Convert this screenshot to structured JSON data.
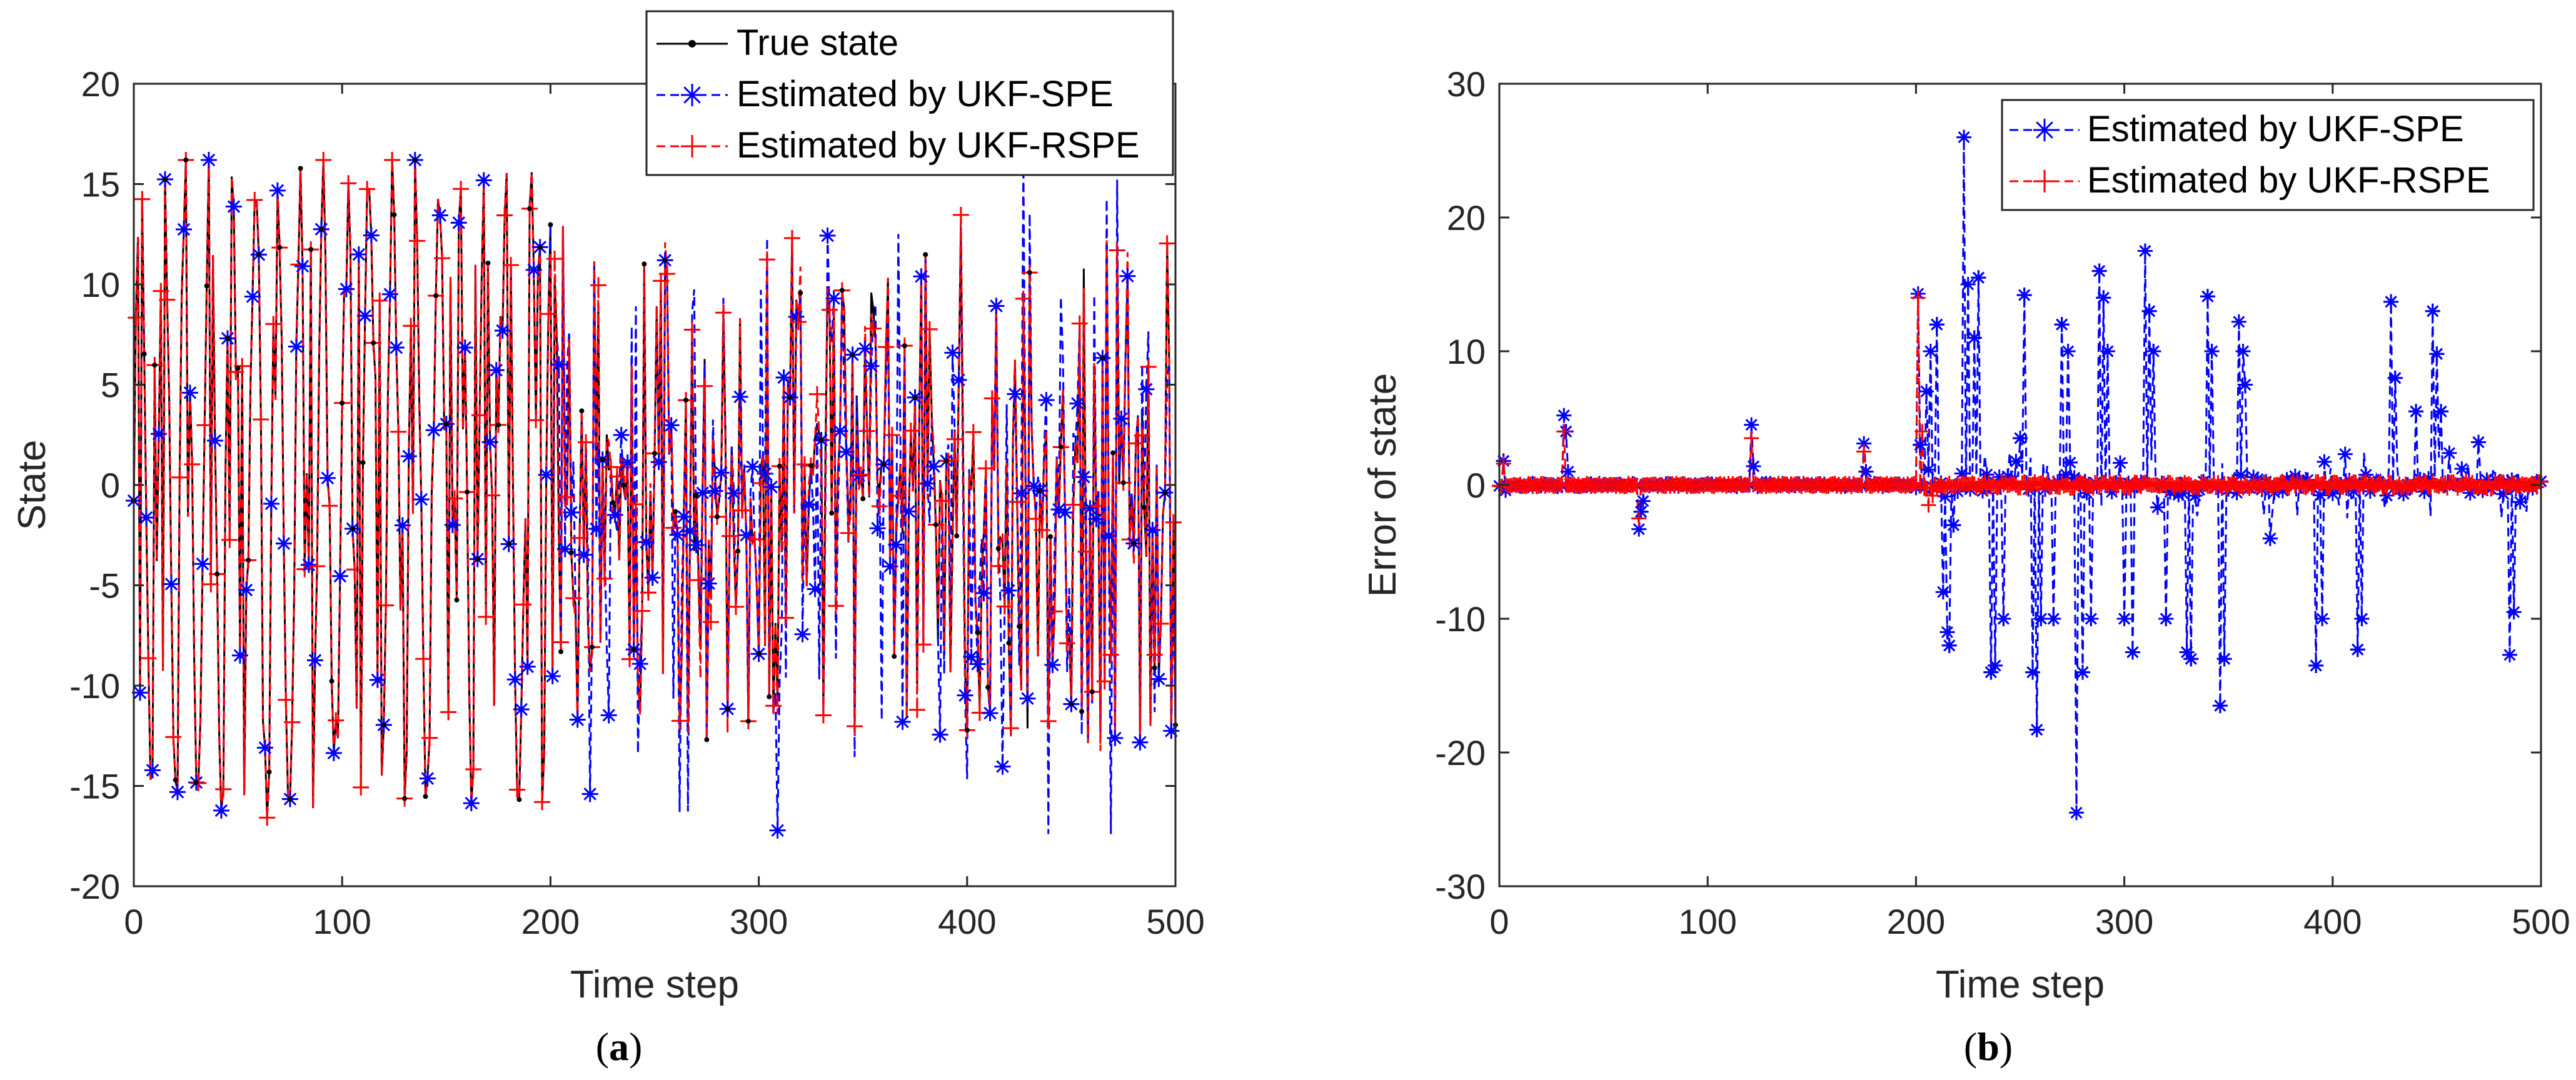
{
  "colors": {
    "true": "#000000",
    "spe": "#0000ff",
    "rspe": "#ff0000",
    "axis": "#262626"
  },
  "chart_data": [
    {
      "type": "line",
      "panel": "a",
      "caption_open": "(",
      "caption_letter": "a",
      "caption_close": ")",
      "xlabel": "Time step",
      "ylabel": "State",
      "xlim": [
        0,
        500
      ],
      "ylim": [
        -20,
        20
      ],
      "xticks": [
        0,
        100,
        200,
        300,
        400,
        500
      ],
      "yticks": [
        20,
        15,
        10,
        5,
        0,
        -5,
        -10,
        -15,
        -20
      ],
      "legend_position": "top-right",
      "series": [
        {
          "name": "True state",
          "marker": "dot"
        },
        {
          "name": "Estimated by UKF-SPE",
          "marker": "asterisk"
        },
        {
          "name": "Estimated by UKF-RSPE",
          "marker": "plus"
        }
      ],
      "description": "Signal oscillates between about -17 and 16 over 500 steps; estimates track closely."
    },
    {
      "type": "line",
      "panel": "b",
      "caption_open": "(",
      "caption_letter": "b",
      "caption_close": ")",
      "xlabel": "Time step",
      "ylabel": "Error of state",
      "xlim": [
        0,
        500
      ],
      "ylim": [
        -30,
        30
      ],
      "xticks": [
        0,
        100,
        200,
        300,
        400,
        500
      ],
      "yticks": [
        30,
        20,
        10,
        0,
        -10,
        -20,
        -30
      ],
      "legend_position": "top-right",
      "series": [
        {
          "name": "Estimated by UKF-SPE",
          "marker": "asterisk"
        },
        {
          "name": "Estimated by UKF-RSPE",
          "marker": "plus"
        }
      ],
      "spe_spikes": [
        [
          2,
          1.8
        ],
        [
          3,
          -0.4
        ],
        [
          31,
          5.2
        ],
        [
          32,
          4.0
        ],
        [
          33,
          1.0
        ],
        [
          67,
          -3.3
        ],
        [
          68,
          -2.0
        ],
        [
          69,
          -1.2
        ],
        [
          121,
          4.5
        ],
        [
          122,
          1.4
        ],
        [
          175,
          3.1
        ],
        [
          176,
          1.0
        ],
        [
          201,
          14.3
        ],
        [
          202,
          3.0
        ],
        [
          205,
          7.0
        ],
        [
          207,
          10.0
        ],
        [
          210,
          12.0
        ],
        [
          213,
          -8.0
        ],
        [
          215,
          -11.0
        ],
        [
          216,
          -12.0
        ],
        [
          218,
          -3.0
        ],
        [
          223,
          26.0
        ],
        [
          225,
          15.0
        ],
        [
          228,
          11.0
        ],
        [
          230,
          15.5
        ],
        [
          236,
          -14.0
        ],
        [
          238,
          -13.5
        ],
        [
          242,
          -10.0
        ],
        [
          250,
          3.5
        ],
        [
          252,
          14.2
        ],
        [
          256,
          -14.0
        ],
        [
          258,
          -18.3
        ],
        [
          260,
          -10.0
        ],
        [
          266,
          -10.0
        ],
        [
          270,
          12.0
        ],
        [
          273,
          10.0
        ],
        [
          277,
          -24.5
        ],
        [
          280,
          -14.0
        ],
        [
          284,
          -10.0
        ],
        [
          288,
          16.0
        ],
        [
          290,
          14.0
        ],
        [
          292,
          10.0
        ],
        [
          300,
          -10.0
        ],
        [
          304,
          -12.5
        ],
        [
          310,
          17.5
        ],
        [
          312,
          13.0
        ],
        [
          314,
          10.0
        ],
        [
          320,
          -10.0
        ],
        [
          330,
          -12.5
        ],
        [
          332,
          -13.0
        ],
        [
          340,
          14.1
        ],
        [
          342,
          10.0
        ],
        [
          346,
          -16.5
        ],
        [
          348,
          -13.0
        ],
        [
          355,
          12.2
        ],
        [
          357,
          10.0
        ],
        [
          358,
          7.5
        ],
        [
          370,
          -4.0
        ],
        [
          392,
          -13.5
        ],
        [
          395,
          -10.0
        ],
        [
          412,
          -12.3
        ],
        [
          414,
          -10.0
        ],
        [
          428,
          13.7
        ],
        [
          430,
          8.0
        ],
        [
          440,
          5.5
        ],
        [
          448,
          13.0
        ],
        [
          450,
          9.8
        ],
        [
          452,
          5.5
        ],
        [
          470,
          3.2
        ],
        [
          485,
          -12.7
        ],
        [
          487,
          -9.5
        ]
      ],
      "rspe_spikes": [
        [
          2,
          1.6
        ],
        [
          31,
          4.0
        ],
        [
          67,
          -2.5
        ],
        [
          121,
          3.5
        ],
        [
          175,
          2.5
        ],
        [
          201,
          14.0
        ],
        [
          203,
          4.0
        ],
        [
          206,
          -1.5
        ],
        [
          208,
          -0.8
        ]
      ],
      "description": "Errors near 0 before step 200; UKF-SPE error shows large spikes after step 200 while UKF-RSPE stays near 0."
    }
  ]
}
